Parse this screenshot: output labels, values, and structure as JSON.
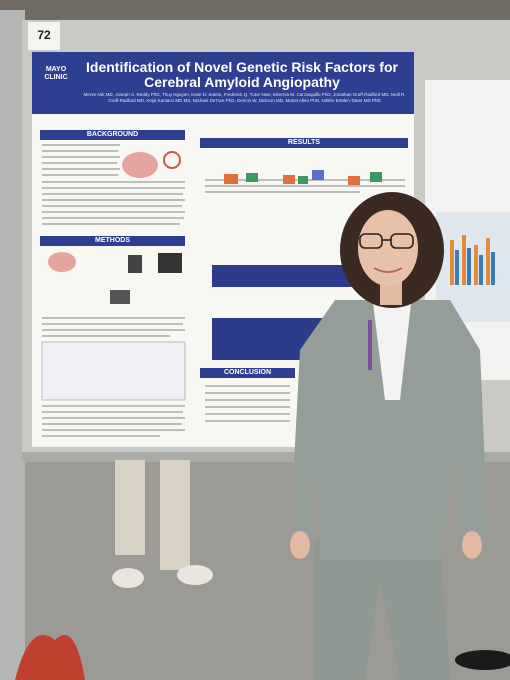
{
  "board_number": "72",
  "poster": {
    "logo": [
      "MAYO",
      "CLINIC"
    ],
    "title": "Identification of Novel Genetic Risk Factors for Cerebral Amyloid Angiopathy",
    "authors": "Merve Atik MD, Joseph S. Reddy PhD, Thuy Nguyen, Kaite D. Sotelo, Frederick Q. Tutor-Nwe, Minerva M. Carrasquillo PhD, Jonathan Graff-Radford MD, Neill R. Graff-Radford MD, Kejal Kantarci MD MS, Michael DeTure PhD, Dennis W. Dickson MD, Mariet Allen PhD, Nilüfer Ertekin-Taner MD PhD",
    "sections": [
      "BACKGROUND",
      "METHODS",
      "RESULTS",
      "CONCLUSION"
    ]
  }
}
